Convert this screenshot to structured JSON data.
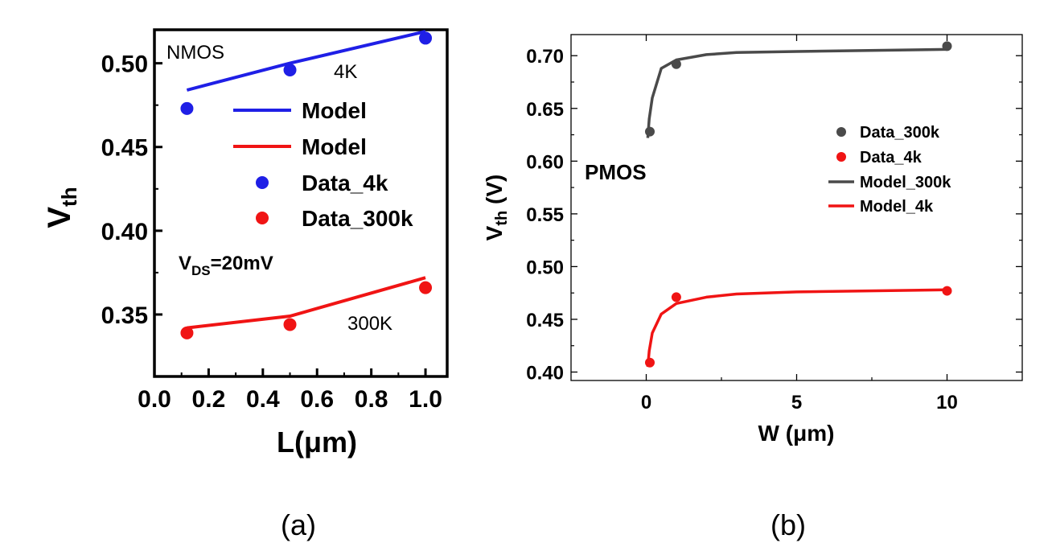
{
  "captions": {
    "a": "(a)",
    "b": "(b)"
  },
  "colors": {
    "blue": "#1f1fe6",
    "red": "#f01414",
    "gray": "#4a4a4a",
    "axis": "#000000"
  },
  "chart_data": [
    {
      "type": "scatter",
      "panel": "a",
      "xlabel": "L(μm)",
      "ylabel": {
        "main": "V",
        "sub": "th"
      },
      "xlim": [
        0.0,
        1.08
      ],
      "ylim": [
        0.313,
        0.52
      ],
      "xticks": [
        "0.0",
        "0.2",
        "0.4",
        "0.6",
        "0.8",
        "1.0"
      ],
      "yticks": [
        "0.35",
        "0.40",
        "0.45",
        "0.50"
      ],
      "annotations": {
        "device": "NMOS",
        "label_4k": "4K",
        "label_300k": "300K",
        "bias_main": "V",
        "bias_sub": "DS",
        "bias_rest": "=20mV"
      },
      "legend_position": "upper-right",
      "series": [
        {
          "name": "Model",
          "kind": "line",
          "color": "#1f1fe6",
          "x": [
            0.12,
            0.5,
            1.0
          ],
          "y": [
            0.484,
            0.5,
            0.519
          ]
        },
        {
          "name": "Model",
          "kind": "line",
          "color": "#f01414",
          "x": [
            0.12,
            0.5,
            1.0
          ],
          "y": [
            0.342,
            0.349,
            0.372
          ]
        },
        {
          "name": "Data_4k",
          "kind": "scatter",
          "color": "#1f1fe6",
          "x": [
            0.12,
            0.5,
            1.0
          ],
          "y": [
            0.473,
            0.496,
            0.515
          ]
        },
        {
          "name": "Data_300k",
          "kind": "scatter",
          "color": "#f01414",
          "x": [
            0.12,
            0.5,
            1.0
          ],
          "y": [
            0.339,
            0.344,
            0.366
          ]
        }
      ]
    },
    {
      "type": "scatter",
      "panel": "b",
      "xlabel": "W (μm)",
      "ylabel": {
        "main": "V",
        "sub": "th",
        "rest": " (V)"
      },
      "xlim": [
        -2.5,
        12.5
      ],
      "ylim": [
        0.392,
        0.72
      ],
      "xticks": [
        "0",
        "5",
        "10"
      ],
      "yticks": [
        "0.40",
        "0.45",
        "0.50",
        "0.55",
        "0.60",
        "0.65",
        "0.70"
      ],
      "annotations": {
        "device": "PMOS"
      },
      "legend_position": "right",
      "series": [
        {
          "name": "Data_300k",
          "kind": "scatter",
          "color": "#4a4a4a",
          "x": [
            0.12,
            1.0,
            10.0
          ],
          "y": [
            0.628,
            0.692,
            0.709
          ]
        },
        {
          "name": "Data_4k",
          "kind": "scatter",
          "color": "#f01414",
          "x": [
            0.12,
            1.0,
            10.0
          ],
          "y": [
            0.409,
            0.471,
            0.477
          ]
        },
        {
          "name": "Model_300k",
          "kind": "line",
          "color": "#4a4a4a",
          "x": [
            0.05,
            0.1,
            0.2,
            0.5,
            1.0,
            2.0,
            3.0,
            5.0,
            10.0
          ],
          "y": [
            0.622,
            0.64,
            0.66,
            0.688,
            0.696,
            0.701,
            0.703,
            0.704,
            0.706
          ]
        },
        {
          "name": "Model_4k",
          "kind": "line",
          "color": "#f01414",
          "x": [
            0.05,
            0.1,
            0.2,
            0.5,
            1.0,
            2.0,
            3.0,
            5.0,
            10.0
          ],
          "y": [
            0.405,
            0.42,
            0.437,
            0.455,
            0.465,
            0.471,
            0.474,
            0.476,
            0.478
          ]
        }
      ]
    }
  ]
}
